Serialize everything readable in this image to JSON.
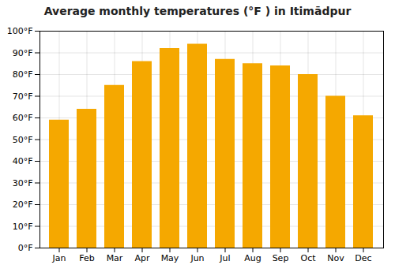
{
  "chart_data": {
    "type": "bar",
    "title": "Average monthly temperatures (°F ) in Itimādpur",
    "categories": [
      "Jan",
      "Feb",
      "Mar",
      "Apr",
      "May",
      "Jun",
      "Jul",
      "Aug",
      "Sep",
      "Oct",
      "Nov",
      "Dec"
    ],
    "values": [
      59,
      64,
      75,
      86,
      92,
      94,
      87,
      85,
      84,
      80,
      70,
      61
    ],
    "color": "#F5A800",
    "ylim": [
      0,
      100
    ],
    "yticks": [
      {
        "value": 0,
        "label": "0°F"
      },
      {
        "value": 10,
        "label": "10°F"
      },
      {
        "value": 20,
        "label": "20°F"
      },
      {
        "value": 30,
        "label": "30°F"
      },
      {
        "value": 40,
        "label": "40°F"
      },
      {
        "value": 50,
        "label": "50°F"
      },
      {
        "value": 60,
        "label": "60°F"
      },
      {
        "value": 70,
        "label": "70°F"
      },
      {
        "value": 80,
        "label": "80°F"
      },
      {
        "value": 90,
        "label": "90°F"
      },
      {
        "value": 100,
        "label": "100°F"
      }
    ],
    "grid": true
  }
}
